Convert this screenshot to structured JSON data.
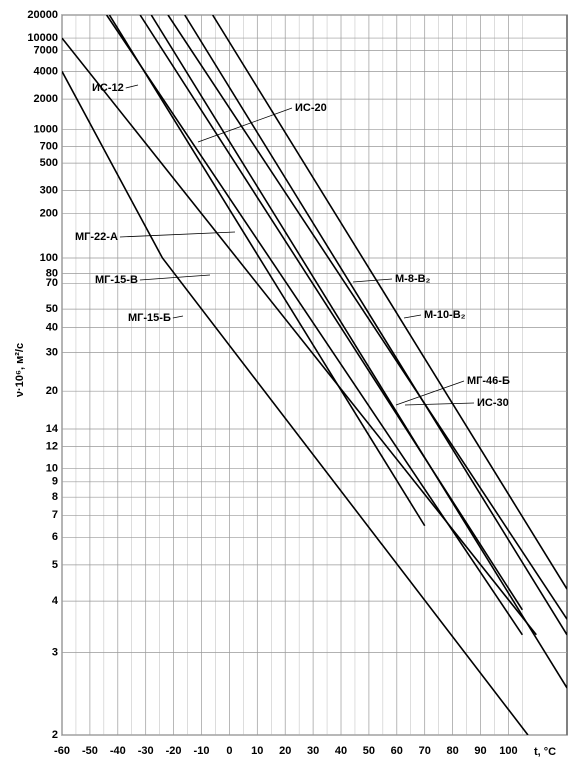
{
  "chart_data": {
    "type": "line",
    "yscale": "walther",
    "grid": true,
    "color": "#000000",
    "xlabel": "t, °C",
    "ylabel": "ν·10⁶, м²/с",
    "xlim": [
      -60,
      121
    ],
    "xticks": [
      -60,
      -50,
      -40,
      -30,
      -20,
      -10,
      0,
      10,
      20,
      30,
      40,
      50,
      60,
      70,
      80,
      90,
      100
    ],
    "ylim": [
      2,
      20000
    ],
    "yticks": [
      2,
      3,
      4,
      5,
      6,
      7,
      8,
      9,
      10,
      12,
      14,
      20,
      30,
      40,
      50,
      70,
      80,
      100,
      200,
      300,
      500,
      700,
      1000,
      2000,
      4000,
      7000,
      10000,
      20000
    ],
    "series": [
      {
        "name": "ИС-12",
        "color": "#000000",
        "x": [
          -44,
          105
        ],
        "values": [
          20000,
          3.3
        ]
      },
      {
        "name": "ИС-20",
        "color": "#000000",
        "x": [
          -32,
          105
        ],
        "values": [
          20000,
          3.8
        ]
      },
      {
        "name": "МГ-22-А",
        "color": "#000000",
        "x": [
          -43,
          70
        ],
        "values": [
          20000,
          6.5
        ]
      },
      {
        "name": "МГ-15-В",
        "color": "#000000",
        "x": [
          -60,
          110
        ],
        "values": [
          10000,
          3.3
        ]
      },
      {
        "name": "МГ-15-Б",
        "color": "#000000",
        "x": [
          -60,
          -24,
          107
        ],
        "values": [
          4000,
          100,
          2
        ]
      },
      {
        "name": "М-8-В₂",
        "color": "#000000",
        "x": [
          -6,
          121
        ],
        "values": [
          20000,
          4.3
        ]
      },
      {
        "name": "М-10-В₂",
        "color": "#000000",
        "x": [
          -16,
          121
        ],
        "values": [
          20000,
          3.3
        ]
      },
      {
        "name": "МГ-46-Б",
        "color": "#000000",
        "x": [
          -28,
          121
        ],
        "values": [
          20000,
          2.5
        ]
      },
      {
        "name": "ИС-30",
        "color": "#000000",
        "x": [
          -22,
          121
        ],
        "values": [
          20000,
          3.6
        ]
      }
    ]
  }
}
